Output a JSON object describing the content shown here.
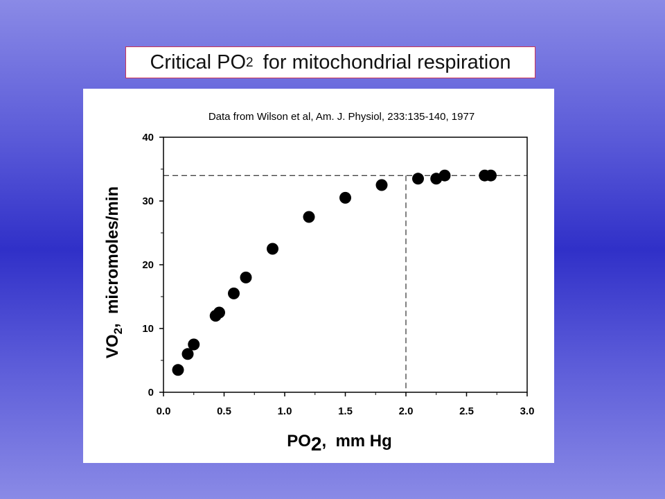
{
  "slide": {
    "title_main": "Critical PO",
    "title_sub": "2",
    "title_rest": " for mitochondrial respiration"
  },
  "chart_data": {
    "type": "scatter",
    "source_note": "Data from Wilson et al, Am. J. Physiol, 233:135-140, 1977",
    "xlabel": {
      "main": "PO",
      "sub": "2",
      "rest": ",  mm Hg"
    },
    "ylabel": {
      "main": "VO",
      "sub": "2",
      "rest": ",  micromoles/min"
    },
    "xlim": [
      0,
      3.0
    ],
    "ylim": [
      0,
      40
    ],
    "x_ticks": [
      "0.0",
      "0.5",
      "1.0",
      "1.5",
      "2.0",
      "2.5",
      "3.0"
    ],
    "x_tick_values": [
      0,
      0.5,
      1.0,
      1.5,
      2.0,
      2.5,
      3.0
    ],
    "y_ticks": [
      "0",
      "10",
      "20",
      "30",
      "40"
    ],
    "y_tick_values": [
      0,
      10,
      20,
      30,
      40
    ],
    "grid": false,
    "points": [
      {
        "x": 0.12,
        "y": 3.5
      },
      {
        "x": 0.2,
        "y": 6.0
      },
      {
        "x": 0.25,
        "y": 7.5
      },
      {
        "x": 0.43,
        "y": 12.0
      },
      {
        "x": 0.46,
        "y": 12.5
      },
      {
        "x": 0.58,
        "y": 15.5
      },
      {
        "x": 0.68,
        "y": 18.0
      },
      {
        "x": 0.9,
        "y": 22.5
      },
      {
        "x": 1.2,
        "y": 27.5
      },
      {
        "x": 1.5,
        "y": 30.5
      },
      {
        "x": 1.8,
        "y": 32.5
      },
      {
        "x": 2.1,
        "y": 33.5
      },
      {
        "x": 2.25,
        "y": 33.5
      },
      {
        "x": 2.32,
        "y": 34.0
      },
      {
        "x": 2.65,
        "y": 34.0
      },
      {
        "x": 2.7,
        "y": 34.0
      }
    ],
    "reference_lines": {
      "horizontal_y": 34.0,
      "vertical_x": 2.0
    },
    "marker_color": "#000000"
  }
}
